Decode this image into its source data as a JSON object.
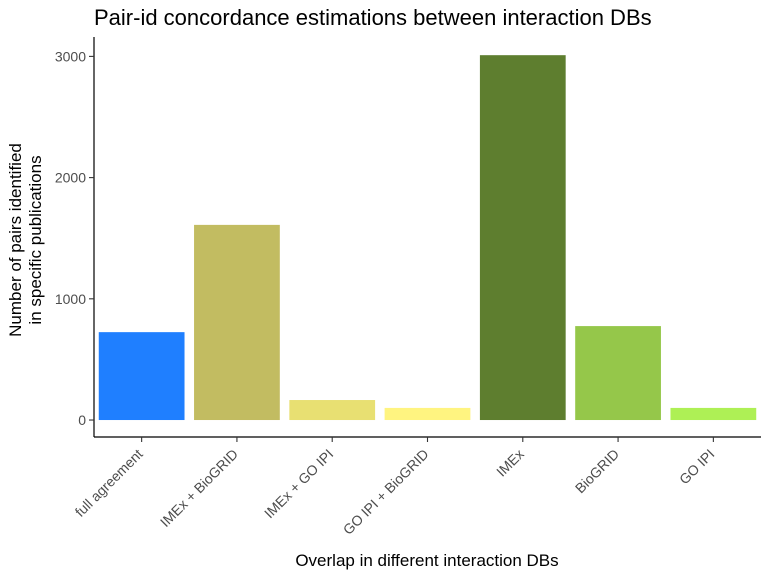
{
  "chart_data": {
    "type": "bar",
    "title": "Pair-id concordance estimations between interaction DBs",
    "xlabel": "Overlap in different interaction DBs",
    "ylabel_lines": [
      "Number of pairs identified",
      "in specific publications"
    ],
    "categories": [
      "full agreement",
      "IMEx + BioGRID",
      "IMEx + GO IPI",
      "GO IPI + BioGRID",
      "IMEx",
      "BioGRID",
      "GO IPI"
    ],
    "values": [
      725,
      1610,
      165,
      100,
      3010,
      775,
      100
    ],
    "colors": [
      "#1f7fff",
      "#c2bc61",
      "#e8e072",
      "#fff480",
      "#5e7e2f",
      "#95c74a",
      "#aef055"
    ],
    "yticks": [
      0,
      1000,
      2000,
      3000
    ],
    "ylim": [
      -140,
      3160
    ],
    "grid": false,
    "legend": "none"
  }
}
